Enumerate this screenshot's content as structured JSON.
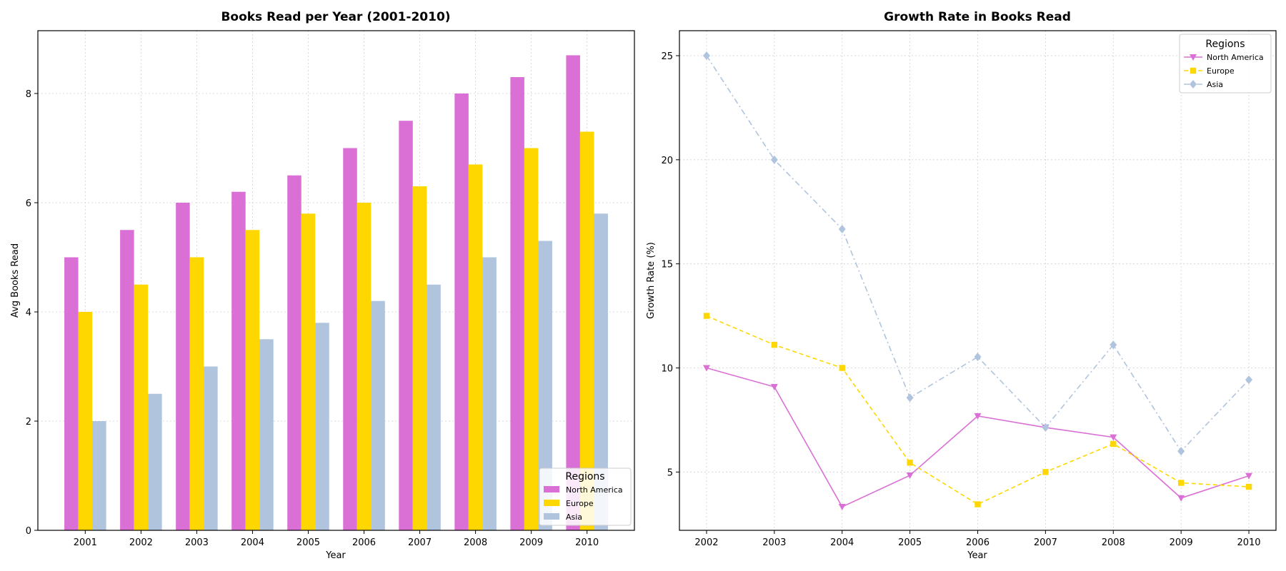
{
  "colors": {
    "north_america": "#da70d6",
    "europe": "#ffd700",
    "asia": "#b0c4de",
    "grid": "#d0d0d0",
    "axes": "#000000"
  },
  "chart_data": [
    {
      "type": "bar",
      "title": "Books Read per Year (2001-2010)",
      "xlabel": "Year",
      "ylabel": "Avg Books Read",
      "categories": [
        "2001",
        "2002",
        "2003",
        "2004",
        "2005",
        "2006",
        "2007",
        "2008",
        "2009",
        "2010"
      ],
      "ylim": [
        0,
        9.15
      ],
      "yticks": [
        0,
        2,
        4,
        6,
        8
      ],
      "grid": true,
      "legend": {
        "title": "Regions",
        "placement": "lower-right"
      },
      "series": [
        {
          "name": "North America",
          "color": "#da70d6",
          "values": [
            5.0,
            5.5,
            6.0,
            6.2,
            6.5,
            7.0,
            7.5,
            8.0,
            8.3,
            8.7
          ]
        },
        {
          "name": "Europe",
          "color": "#ffd700",
          "values": [
            4.0,
            4.5,
            5.0,
            5.5,
            5.8,
            6.0,
            6.3,
            6.7,
            7.0,
            7.3
          ]
        },
        {
          "name": "Asia",
          "color": "#b0c4de",
          "values": [
            2.0,
            2.5,
            3.0,
            3.5,
            3.8,
            4.2,
            4.5,
            5.0,
            5.3,
            5.8
          ]
        }
      ]
    },
    {
      "type": "line",
      "title": "Growth Rate in Books Read",
      "xlabel": "Year",
      "ylabel": "Growth Rate (%)",
      "x": [
        "2002",
        "2003",
        "2004",
        "2005",
        "2006",
        "2007",
        "2008",
        "2009",
        "2010"
      ],
      "ylim": [
        2.2,
        26.2
      ],
      "yticks": [
        5,
        10,
        15,
        20,
        25
      ],
      "grid": true,
      "legend": {
        "title": "Regions",
        "placement": "upper-right"
      },
      "series": [
        {
          "name": "North America",
          "color": "#da70d6",
          "marker": "triangle-down",
          "dash": "solid",
          "values": [
            10.0,
            9.09,
            3.33,
            4.84,
            7.69,
            7.14,
            6.67,
            3.75,
            4.82
          ]
        },
        {
          "name": "Europe",
          "color": "#ffd700",
          "marker": "square",
          "dash": "dashed",
          "values": [
            12.5,
            11.11,
            10.0,
            5.45,
            3.45,
            5.0,
            6.35,
            4.48,
            4.29
          ]
        },
        {
          "name": "Asia",
          "color": "#b0c4de",
          "marker": "diamond",
          "dash": "dashdot",
          "values": [
            25.0,
            20.0,
            16.67,
            8.57,
            10.53,
            7.14,
            11.11,
            6.0,
            9.43
          ]
        }
      ]
    }
  ]
}
